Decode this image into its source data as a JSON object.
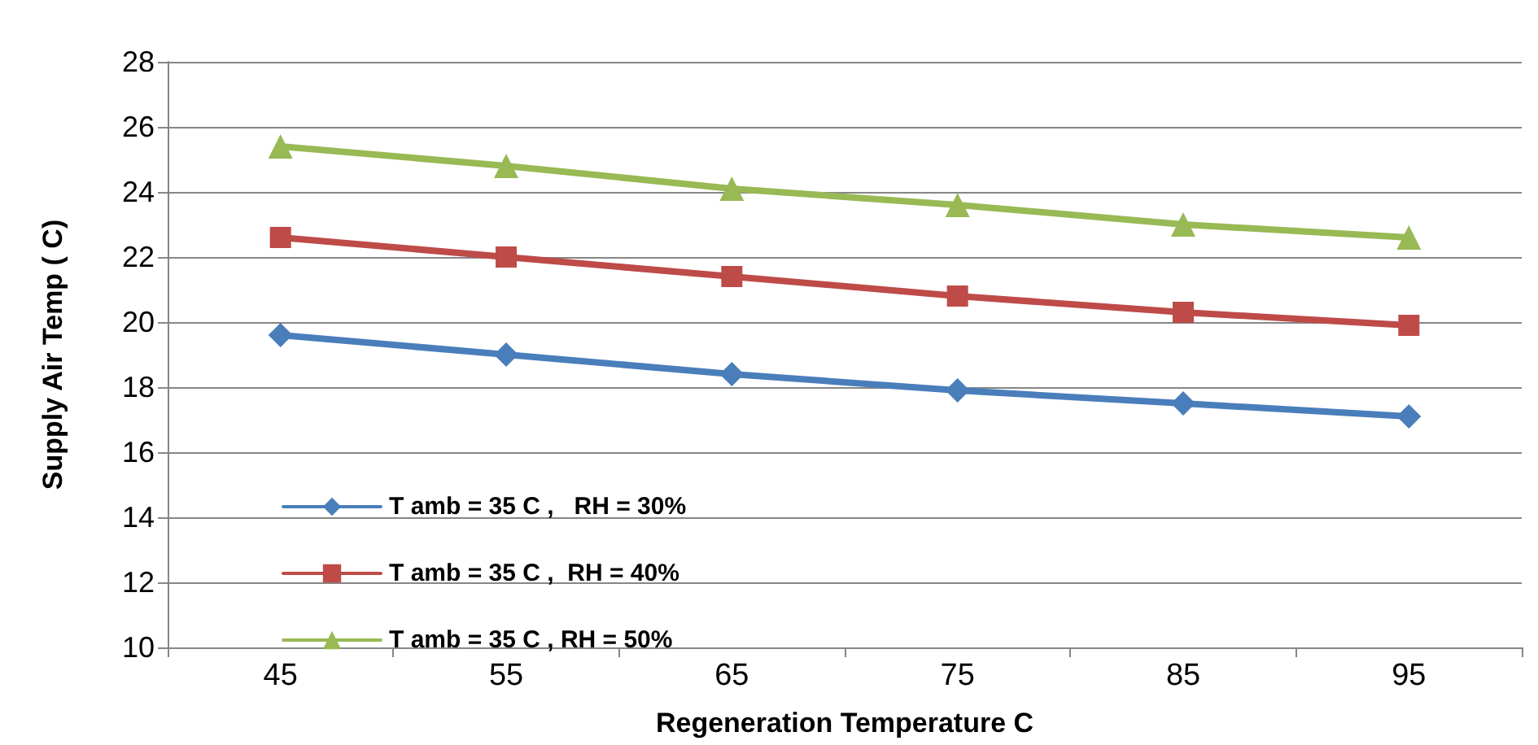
{
  "chart_data": {
    "type": "line",
    "xlabel": "Regeneration Temperature C",
    "ylabel": "Supply Air Temp ( C)",
    "categories": [
      "45",
      "55",
      "65",
      "75",
      "85",
      "95"
    ],
    "series": [
      {
        "name": "T amb = 35 C ,   RH = 30%",
        "color": "#4a7ebb",
        "marker": "diamond",
        "values": [
          19.6,
          19.0,
          18.4,
          17.9,
          17.5,
          17.1
        ]
      },
      {
        "name": "T amb = 35 C ,  RH = 40%",
        "color": "#be4b48",
        "marker": "square",
        "values": [
          22.6,
          22.0,
          21.4,
          20.8,
          20.3,
          19.9
        ]
      },
      {
        "name": "T amb = 35 C , RH = 50%",
        "color": "#98b954",
        "marker": "triangle",
        "values": [
          25.4,
          24.8,
          24.1,
          23.6,
          23.0,
          22.6
        ]
      }
    ],
    "ylim": [
      10,
      28
    ],
    "yticks": [
      10,
      12,
      14,
      16,
      18,
      20,
      22,
      24,
      26,
      28
    ],
    "grid": "y",
    "legend": "bottom left",
    "line_style": "solid"
  }
}
